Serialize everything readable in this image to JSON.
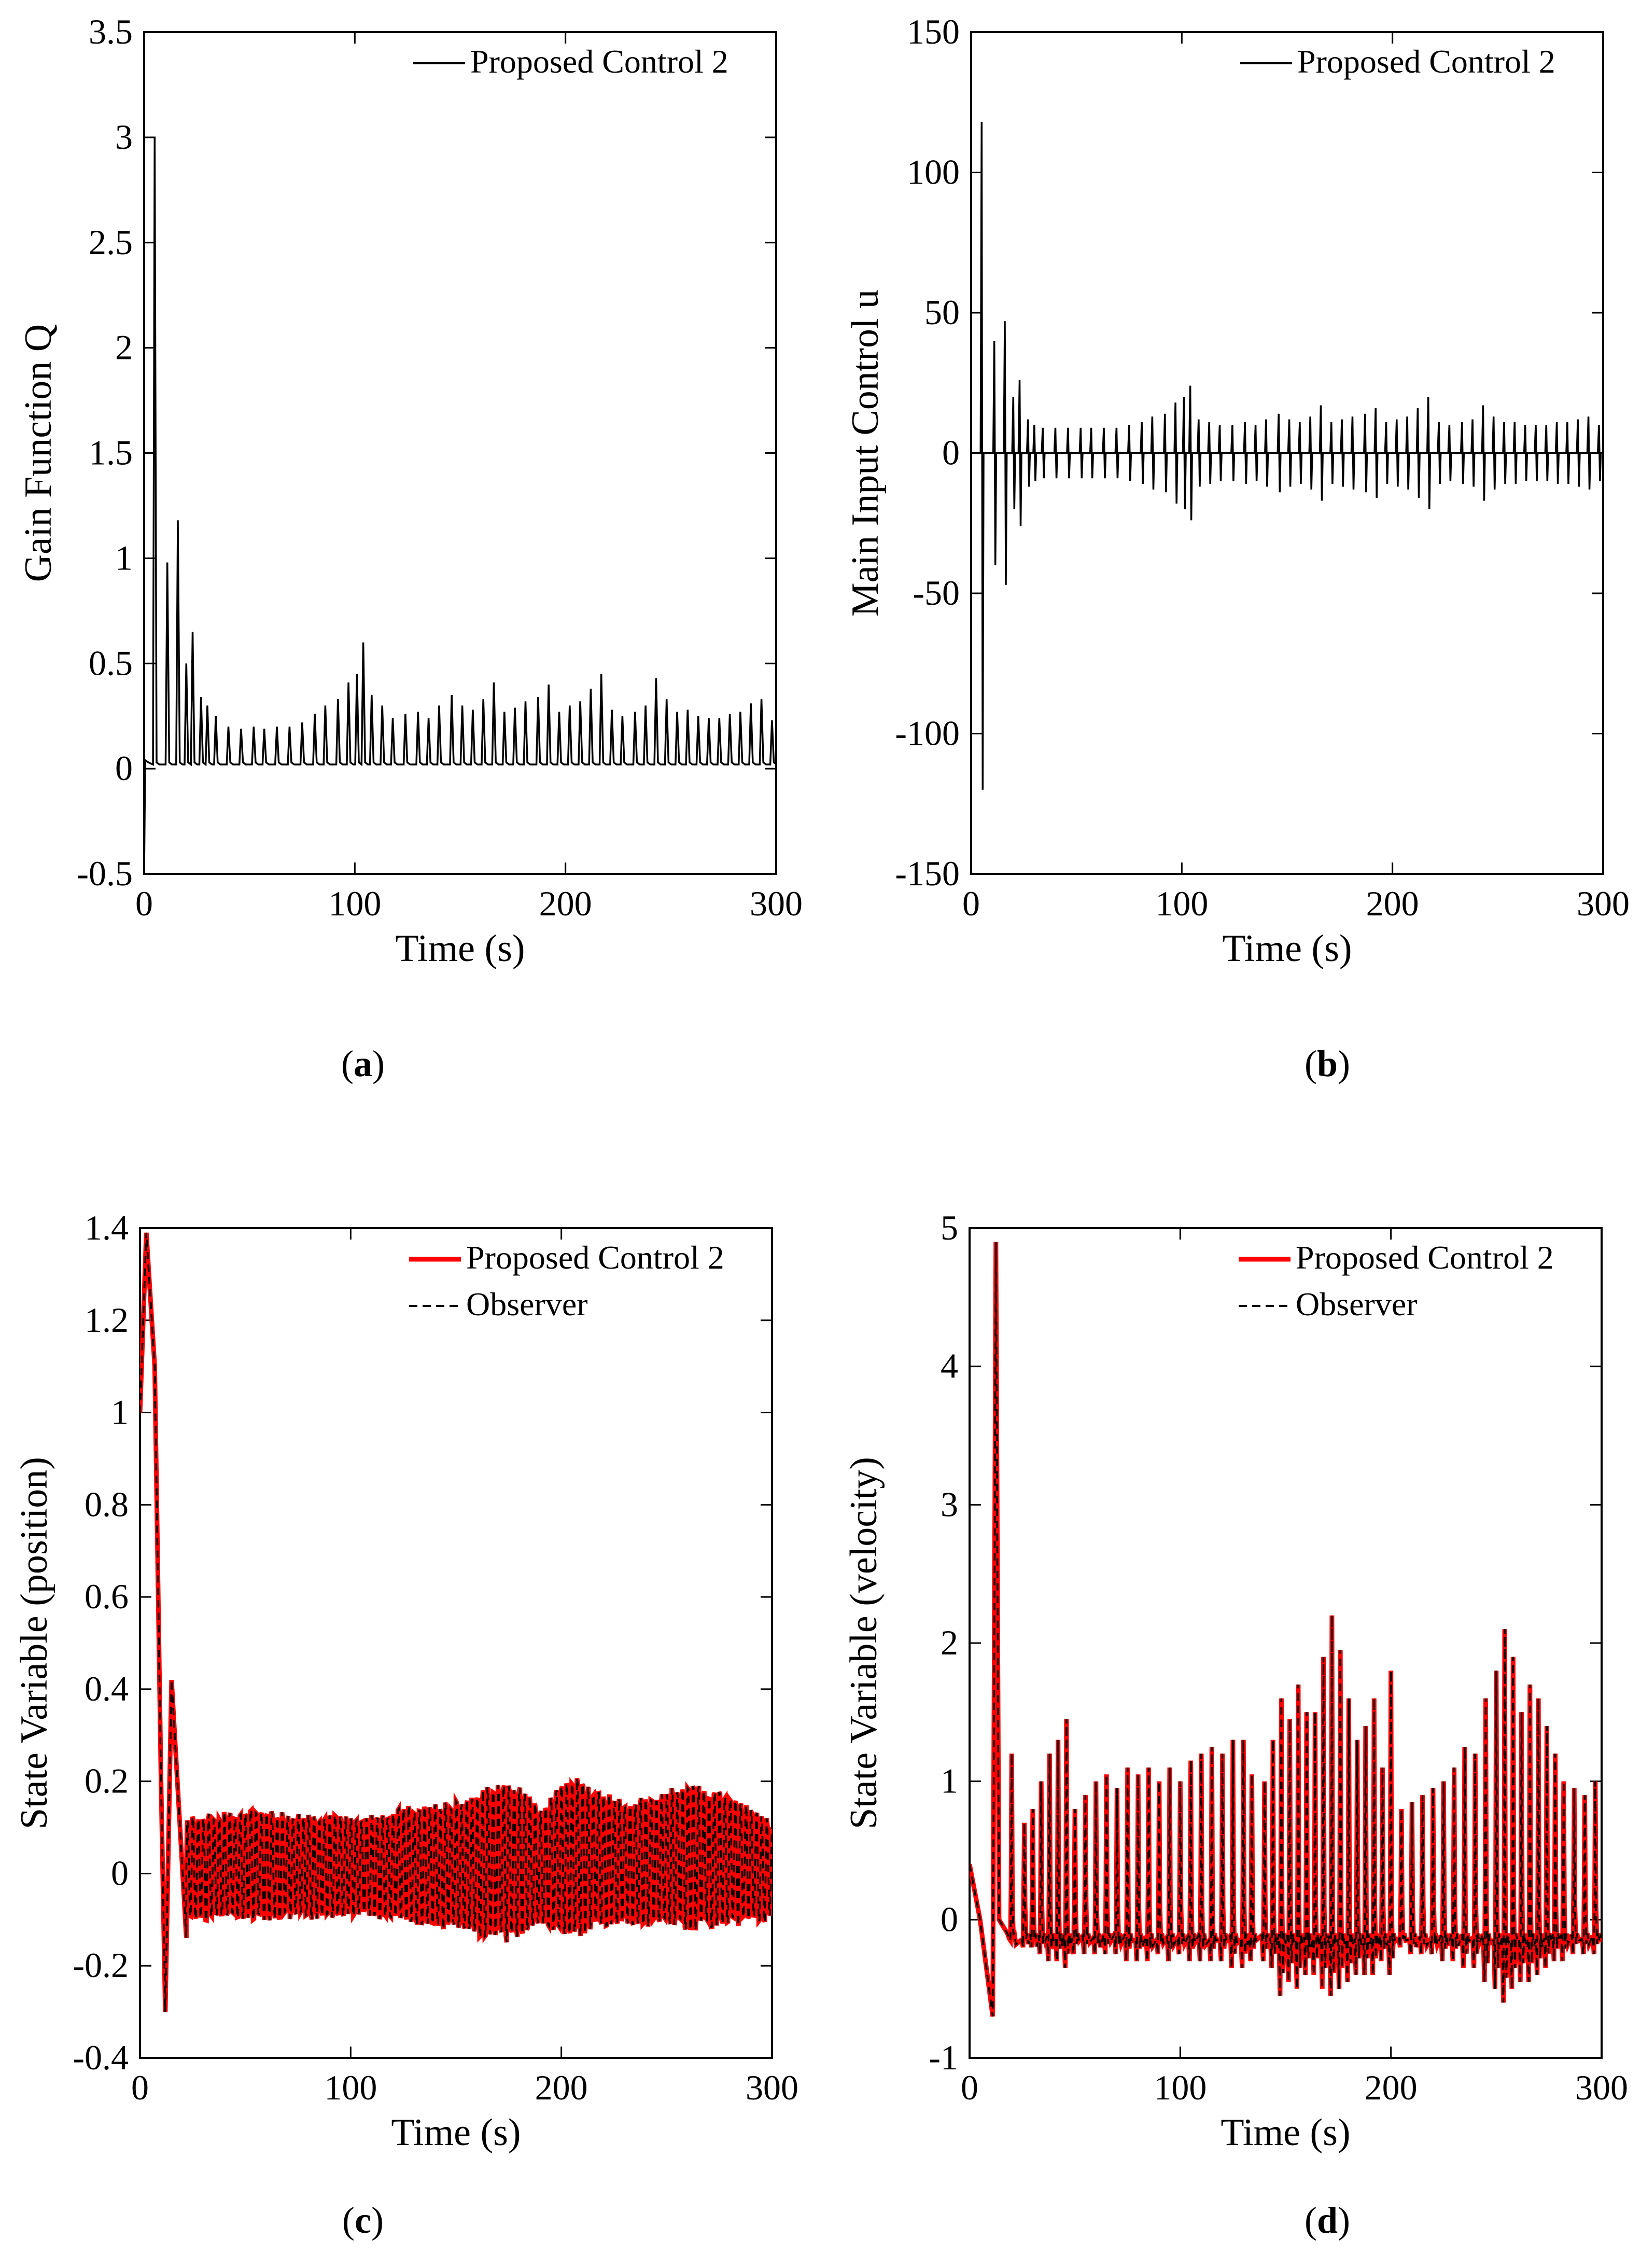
{
  "colors": {
    "background": "#ffffff",
    "axis": "#000000",
    "series_black": "#000000",
    "series_red": "#ff0000"
  },
  "panels": [
    {
      "id": "a",
      "caption": "a"
    },
    {
      "id": "b",
      "caption": "b"
    },
    {
      "id": "c",
      "caption": "c"
    },
    {
      "id": "d",
      "caption": "d"
    }
  ],
  "chart_data": [
    {
      "panel": "a",
      "type": "line",
      "title": "",
      "xlabel": "Time (s)",
      "ylabel": "Gain Function Q",
      "xlim": [
        0,
        300
      ],
      "ylim": [
        -0.5,
        3.5
      ],
      "xticks": [
        0,
        100,
        200,
        300
      ],
      "yticks": [
        -0.5,
        0,
        0.5,
        1,
        1.5,
        2,
        2.5,
        3,
        3.5
      ],
      "ytick_labels": [
        "-0.5",
        "0",
        "0.5",
        "1",
        "1.5",
        "2",
        "2.5",
        "3",
        "3.5"
      ],
      "legend_position": "top-right",
      "series": [
        {
          "name": "Proposed Control 2",
          "style": "solid",
          "color": "#000000",
          "description": "baseline near 0.02 with periodic spikes",
          "baseline": 0.02,
          "spike_times": [
            5,
            11,
            16,
            20,
            23,
            27,
            30,
            34,
            40,
            46,
            52,
            57,
            63,
            69,
            75,
            81,
            86,
            92,
            97,
            101,
            104,
            108,
            113,
            118,
            124,
            130,
            135,
            140,
            146,
            151,
            156,
            161,
            166,
            171,
            176,
            181,
            187,
            192,
            197,
            202,
            207,
            212,
            217,
            222,
            227,
            233,
            238,
            243,
            248,
            253,
            258,
            263,
            268,
            273,
            278,
            283,
            288,
            293,
            298
          ],
          "spike_peaks": [
            3.0,
            0.98,
            1.18,
            0.5,
            0.65,
            0.34,
            0.3,
            0.25,
            0.2,
            0.19,
            0.2,
            0.19,
            0.2,
            0.2,
            0.22,
            0.26,
            0.3,
            0.33,
            0.41,
            0.45,
            0.6,
            0.35,
            0.3,
            0.24,
            0.26,
            0.27,
            0.24,
            0.3,
            0.35,
            0.3,
            0.28,
            0.33,
            0.41,
            0.27,
            0.29,
            0.32,
            0.34,
            0.4,
            0.27,
            0.3,
            0.32,
            0.38,
            0.45,
            0.28,
            0.25,
            0.27,
            0.3,
            0.43,
            0.33,
            0.27,
            0.28,
            0.25,
            0.24,
            0.24,
            0.26,
            0.27,
            0.31,
            0.33,
            0.23
          ]
        }
      ]
    },
    {
      "panel": "b",
      "type": "line",
      "title": "",
      "xlabel": "Time (s)",
      "ylabel": "Main Input Control u",
      "xlim": [
        0,
        300
      ],
      "ylim": [
        -150,
        150
      ],
      "xticks": [
        0,
        100,
        200,
        300
      ],
      "yticks": [
        -150,
        -100,
        -50,
        0,
        50,
        100,
        150
      ],
      "ytick_labels": [
        "-150",
        "-100",
        "-50",
        "0",
        "50",
        "100",
        "150"
      ],
      "legend_position": "top-right",
      "series": [
        {
          "name": "Proposed Control 2",
          "style": "solid",
          "color": "#000000",
          "description": "oscillation around 0 with symmetric spikes",
          "baseline": 0,
          "spike_times": [
            5,
            11,
            16,
            20,
            23,
            27,
            30,
            34,
            40,
            46,
            52,
            57,
            63,
            69,
            75,
            81,
            86,
            92,
            97,
            101,
            104,
            108,
            113,
            118,
            124,
            130,
            135,
            140,
            146,
            151,
            156,
            161,
            166,
            171,
            176,
            181,
            187,
            192,
            197,
            202,
            207,
            212,
            217,
            222,
            227,
            233,
            238,
            243,
            248,
            253,
            258,
            263,
            268,
            273,
            278,
            283,
            288,
            293,
            298
          ],
          "spike_high": [
            118,
            40,
            47,
            20,
            26,
            12,
            10,
            9,
            9,
            9,
            9,
            9,
            9,
            9,
            10,
            11,
            13,
            14,
            18,
            20,
            24,
            12,
            11,
            10,
            10,
            11,
            10,
            12,
            14,
            12,
            11,
            13,
            17,
            11,
            12,
            13,
            14,
            16,
            11,
            12,
            13,
            16,
            20,
            11,
            10,
            11,
            12,
            17,
            13,
            11,
            11,
            10,
            10,
            10,
            11,
            11,
            12,
            13,
            10
          ],
          "spike_low": [
            -120,
            -40,
            -47,
            -20,
            -26,
            -12,
            -10,
            -9,
            -9,
            -9,
            -9,
            -9,
            -9,
            -9,
            -10,
            -11,
            -13,
            -14,
            -18,
            -20,
            -24,
            -12,
            -11,
            -10,
            -10,
            -11,
            -10,
            -12,
            -14,
            -12,
            -11,
            -13,
            -17,
            -11,
            -12,
            -13,
            -14,
            -16,
            -11,
            -12,
            -13,
            -16,
            -20,
            -11,
            -10,
            -11,
            -12,
            -17,
            -13,
            -11,
            -11,
            -10,
            -10,
            -10,
            -11,
            -11,
            -12,
            -13,
            -10
          ]
        }
      ]
    },
    {
      "panel": "c",
      "type": "line",
      "title": "",
      "xlabel": "Time (s)",
      "ylabel": "State Variable (position)",
      "xlim": [
        0,
        300
      ],
      "ylim": [
        -0.4,
        1.4
      ],
      "xticks": [
        0,
        100,
        200,
        300
      ],
      "yticks": [
        -0.4,
        -0.2,
        0,
        0.2,
        0.4,
        0.6,
        0.8,
        1,
        1.2,
        1.4
      ],
      "ytick_labels": [
        "-0.4",
        "-0.2",
        "0",
        "0.2",
        "0.4",
        "0.6",
        "0.8",
        "1",
        "1.2",
        "1.4"
      ],
      "legend_position": "top-right",
      "series": [
        {
          "name": "Proposed Control 2",
          "style": "solid",
          "color": "#ff0000",
          "description": "initial overshoot to 1.39 at t≈3, drop to -0.3 at t≈12, bump 0.42 at t≈15, then oscillation roughly ±0.15 with amplitude peaks near t=130, 175, 205, 260",
          "key_points": [
            [
              0,
              1.0
            ],
            [
              3,
              1.39
            ],
            [
              7,
              1.1
            ],
            [
              10,
              0.2
            ],
            [
              12,
              -0.3
            ],
            [
              15,
              0.42
            ],
            [
              19,
              0.1
            ],
            [
              22,
              -0.14
            ]
          ],
          "oscillation_period": 2.5,
          "envelope_times": [
            20,
            50,
            80,
            100,
            130,
            150,
            175,
            190,
            205,
            230,
            260,
            280,
            300
          ],
          "envelope_upper": [
            0.14,
            0.16,
            0.15,
            0.14,
            0.17,
            0.18,
            0.24,
            0.17,
            0.24,
            0.18,
            0.22,
            0.2,
            0.13
          ],
          "envelope_lower": [
            -0.12,
            -0.12,
            -0.12,
            -0.11,
            -0.13,
            -0.15,
            -0.18,
            -0.14,
            -0.17,
            -0.13,
            -0.15,
            -0.14,
            -0.12
          ]
        },
        {
          "name": "Observer",
          "style": "dashed",
          "color": "#000000",
          "description": "tracks Proposed Control 2 closely"
        }
      ]
    },
    {
      "panel": "d",
      "type": "line",
      "title": "",
      "xlabel": "Time (s)",
      "ylabel": "State Variable (velocity)",
      "xlim": [
        0,
        300
      ],
      "ylim": [
        -1,
        5
      ],
      "xticks": [
        0,
        100,
        200,
        300
      ],
      "yticks": [
        -1,
        0,
        1,
        2,
        3,
        4,
        5
      ],
      "ytick_labels": [
        "-1",
        "0",
        "1",
        "2",
        "3",
        "4",
        "5"
      ],
      "legend_position": "top-right",
      "series": [
        {
          "name": "Proposed Control 2",
          "style": "solid",
          "color": "#ff0000",
          "description": "starts near 0.4, dips to -0.7 at t≈12, spike to 4.9 at t≈13, then periodic spikes 0.7–2.2 with troughs down to -0.6",
          "key_points": [
            [
              0,
              0.4
            ],
            [
              5,
              0.0
            ],
            [
              11,
              -0.7
            ],
            [
              12.5,
              4.9
            ],
            [
              14,
              0.0
            ],
            [
              18,
              -0.1
            ]
          ],
          "spike_times": [
            20,
            26,
            30,
            34,
            38,
            42,
            46,
            50,
            55,
            60,
            65,
            70,
            75,
            80,
            85,
            90,
            95,
            100,
            105,
            110,
            115,
            120,
            125,
            130,
            134,
            140,
            144,
            148,
            152,
            156,
            160,
            164,
            168,
            172,
            176,
            180,
            184,
            188,
            192,
            196,
            200,
            205,
            210,
            215,
            220,
            225,
            230,
            235,
            240,
            245,
            250,
            254,
            258,
            262,
            266,
            270,
            274,
            278,
            282,
            287,
            292,
            297
          ],
          "spike_peaks": [
            1.2,
            0.7,
            0.8,
            1.0,
            1.2,
            1.3,
            1.45,
            0.8,
            0.9,
            1.0,
            1.05,
            0.95,
            1.1,
            1.05,
            1.1,
            1.0,
            1.1,
            1.0,
            1.15,
            1.2,
            1.25,
            1.2,
            1.3,
            1.3,
            1.05,
            1.0,
            1.3,
            1.6,
            1.45,
            1.7,
            1.5,
            1.5,
            1.9,
            2.2,
            1.95,
            1.6,
            1.3,
            1.4,
            1.6,
            1.1,
            1.8,
            0.8,
            0.85,
            0.9,
            0.95,
            1.0,
            1.1,
            1.25,
            1.2,
            1.6,
            1.8,
            2.1,
            1.9,
            1.5,
            1.7,
            1.6,
            1.4,
            1.2,
            1.0,
            0.95,
            0.9,
            1.0
          ],
          "trough_values": [
            -0.15,
            -0.2,
            -0.2,
            -0.25,
            -0.3,
            -0.3,
            -0.35,
            -0.25,
            -0.25,
            -0.25,
            -0.25,
            -0.25,
            -0.3,
            -0.3,
            -0.3,
            -0.25,
            -0.3,
            -0.25,
            -0.3,
            -0.3,
            -0.3,
            -0.3,
            -0.35,
            -0.35,
            -0.3,
            -0.3,
            -0.35,
            -0.55,
            -0.45,
            -0.5,
            -0.4,
            -0.4,
            -0.5,
            -0.55,
            -0.5,
            -0.45,
            -0.4,
            -0.4,
            -0.4,
            -0.3,
            -0.4,
            -0.2,
            -0.25,
            -0.25,
            -0.25,
            -0.3,
            -0.3,
            -0.35,
            -0.35,
            -0.45,
            -0.5,
            -0.6,
            -0.5,
            -0.45,
            -0.45,
            -0.4,
            -0.35,
            -0.3,
            -0.3,
            -0.25,
            -0.25,
            -0.25
          ]
        },
        {
          "name": "Observer",
          "style": "dashed",
          "color": "#000000",
          "description": "tracks Proposed Control 2 closely"
        }
      ]
    }
  ]
}
